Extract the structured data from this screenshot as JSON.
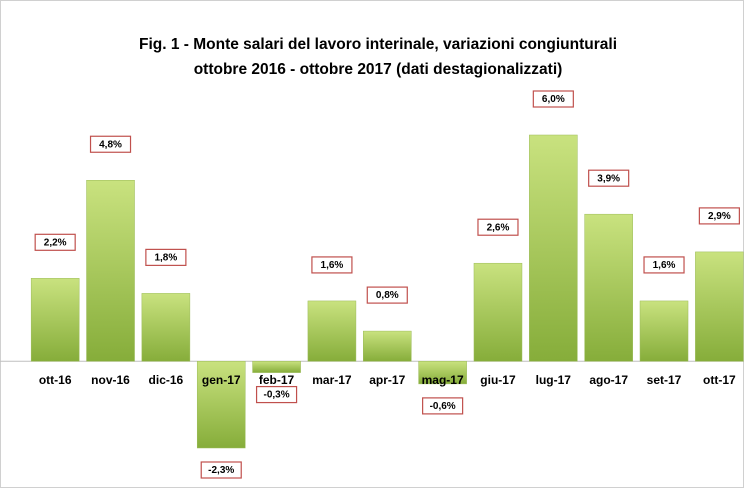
{
  "chart_data": {
    "type": "bar",
    "title": [
      "Fig. 1 - Monte  salari del lavoro interinale, variazioni congiunturali",
      "ottobre 2016 - ottobre 2017 (dati destagionalizzati)"
    ],
    "categories": [
      "ott-16",
      "nov-16",
      "dic-16",
      "gen-17",
      "feb-17",
      "mar-17",
      "apr-17",
      "mag-17",
      "giu-17",
      "lug-17",
      "ago-17",
      "set-17",
      "ott-17"
    ],
    "values": [
      2.2,
      4.8,
      1.8,
      -2.3,
      -0.3,
      1.6,
      0.8,
      -0.6,
      2.6,
      6.0,
      3.9,
      1.6,
      2.9
    ],
    "value_labels": [
      "2,2%",
      "4,8%",
      "1,8%",
      "-2,3%",
      "-0,3%",
      "1,6%",
      "0,8%",
      "-0,6%",
      "2,6%",
      "6,0%",
      "3,9%",
      "1,6%",
      "2,9%"
    ],
    "color": "#9bbb59"
  }
}
